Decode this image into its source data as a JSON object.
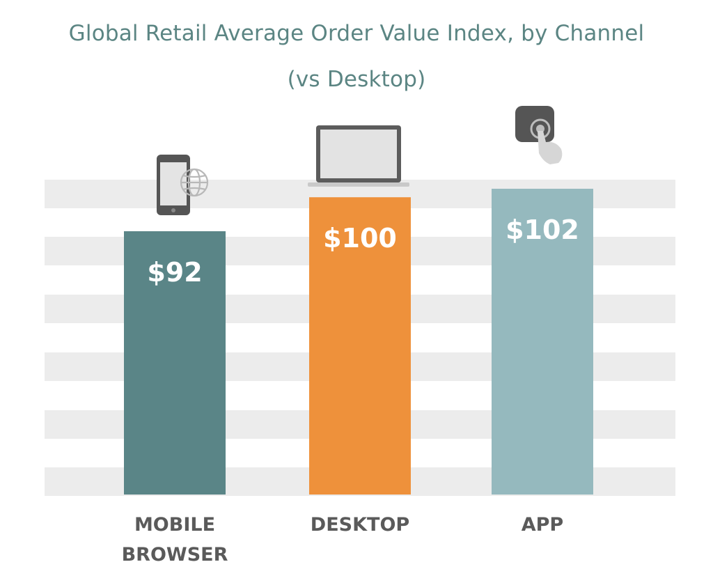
{
  "chart_data": {
    "type": "bar",
    "title": "Global Retail Average Order Value Index, by Channel",
    "subtitle": "(vs Desktop)",
    "categories": [
      "MOBILE\nBROWSER",
      "DESKTOP",
      "APP"
    ],
    "values": [
      92,
      100,
      102
    ],
    "value_labels": [
      "$92",
      "$100",
      "$102"
    ],
    "colors": [
      "#5a8587",
      "#ee913b",
      "#95b9be"
    ],
    "icons": [
      "smartphone-globe-icon",
      "laptop-icon",
      "app-tap-icon"
    ],
    "stripe_color": "#ececec",
    "grid": "horizontal-stripes",
    "legend": "none"
  }
}
